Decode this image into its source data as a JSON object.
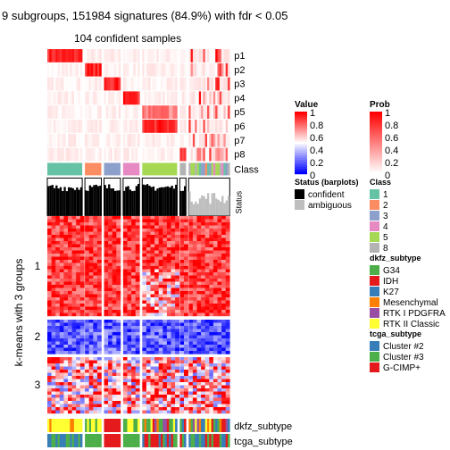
{
  "chart_data": {
    "type": "heatmap",
    "title": "9 subgroups, 151984 signatures (84.9%) with fdr < 0.05",
    "subtitle": "104 confident samples",
    "ylabel": "k-means with 3 groups",
    "row_groups": [
      "1",
      "2",
      "3"
    ],
    "top_tracks": [
      "p1",
      "p2",
      "p3",
      "p4",
      "p5",
      "p6",
      "p7",
      "p8"
    ],
    "class_track_label": "Class",
    "status_track_label": "Status",
    "bottom_tracks": [
      "dkfz_subtype",
      "tcga_subtype"
    ],
    "column_groups": [
      {
        "class": "1",
        "n": 17
      },
      {
        "class": "2",
        "n": 8
      },
      {
        "class": "3",
        "n": 8
      },
      {
        "class": "4",
        "n": 8
      },
      {
        "class": "5",
        "n": 17
      },
      {
        "class": "8",
        "n": 3
      },
      {
        "class": "mixed",
        "n": 20
      }
    ],
    "legends": {
      "value": {
        "title": "Value",
        "ticks": [
          "1",
          "0.8",
          "0.6",
          "0.4",
          "0.2",
          "0"
        ],
        "low": "#0000ff",
        "high": "#ff0000"
      },
      "prob": {
        "title": "Prob",
        "ticks": [
          "1",
          "0.8",
          "0.6",
          "0.4",
          "0.2",
          "0"
        ],
        "low": "#ffffff",
        "high": "#ff0000"
      },
      "status": {
        "title": "Status (barplots)",
        "items": [
          {
            "label": "confident",
            "color": "#000000"
          },
          {
            "label": "ambiguous",
            "color": "#bebebe"
          }
        ]
      },
      "class": {
        "title": "Class",
        "items": [
          {
            "label": "1",
            "color": "#66c2a5"
          },
          {
            "label": "2",
            "color": "#fc8d62"
          },
          {
            "label": "3",
            "color": "#8da0cb"
          },
          {
            "label": "4",
            "color": "#e78ac3"
          },
          {
            "label": "5",
            "color": "#a6d854"
          },
          {
            "label": "8",
            "color": "#b3b3b3"
          }
        ]
      },
      "dkfz": {
        "title": "dkfz_subtype",
        "items": [
          {
            "label": "G34",
            "color": "#4daf4a"
          },
          {
            "label": "IDH",
            "color": "#e41a1c"
          },
          {
            "label": "K27",
            "color": "#377eb8"
          },
          {
            "label": "Mesenchymal",
            "color": "#ff7f00"
          },
          {
            "label": "RTK I PDGFRA",
            "color": "#984ea3"
          },
          {
            "label": "RTK II Classic",
            "color": "#ffff33"
          }
        ]
      },
      "tcga": {
        "title": "tcga_subtype",
        "items": [
          {
            "label": "Cluster #2",
            "color": "#377eb8"
          },
          {
            "label": "Cluster #3",
            "color": "#4daf4a"
          },
          {
            "label": "G-CIMP+",
            "color": "#e41a1c"
          }
        ]
      }
    }
  }
}
